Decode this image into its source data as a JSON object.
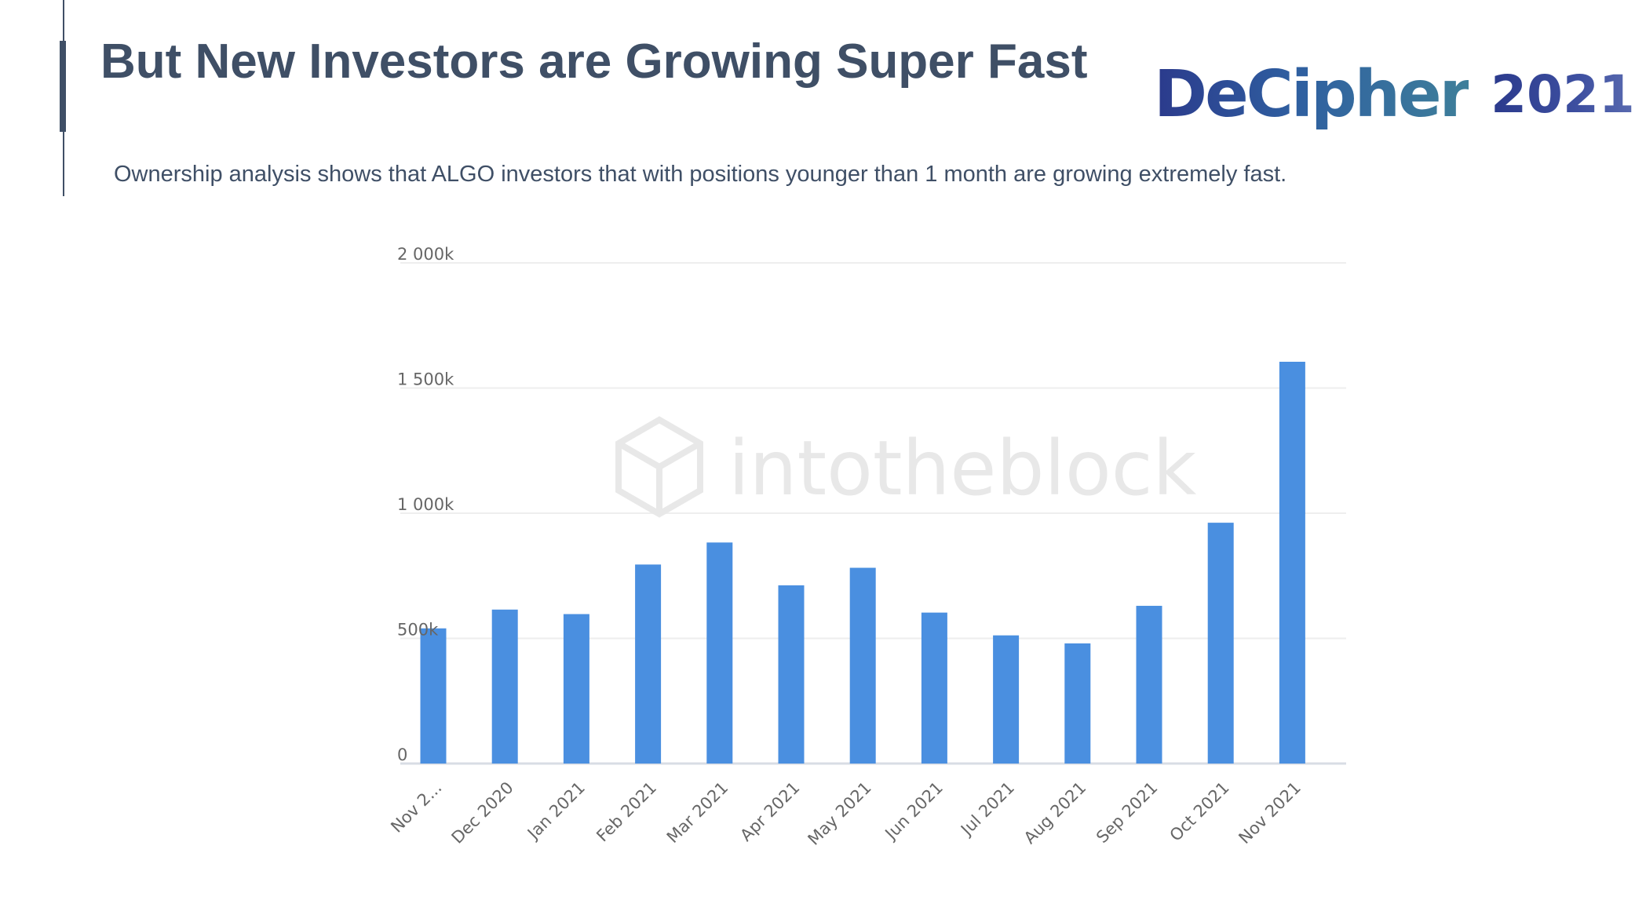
{
  "slide": {
    "title": "But New Investors are Growing Super Fast",
    "subtitle": "Ownership analysis shows that ALGO investors that with positions younger than 1 month are growing extremely fast."
  },
  "logo": {
    "word": "DeCipher",
    "year": "2021"
  },
  "watermark": {
    "text": "intotheblock"
  },
  "chart_data": {
    "type": "bar",
    "categories": [
      "Nov 2...",
      "Dec 2020",
      "Jan 2021",
      "Feb 2021",
      "Mar 2021",
      "Apr 2021",
      "May 2021",
      "Jun 2021",
      "Jul 2021",
      "Aug 2021",
      "Sep 2021",
      "Oct 2021",
      "Nov 2021"
    ],
    "values": [
      540000,
      615000,
      597000,
      795000,
      883000,
      712000,
      782000,
      603000,
      512000,
      480000,
      630000,
      962000,
      1605000
    ],
    "yticks": [
      0,
      500000,
      1000000,
      1500000,
      2000000
    ],
    "ytick_labels": [
      "0",
      "500k",
      "1 000k",
      "1 500k",
      "2 000k"
    ],
    "ylim": [
      0,
      2000000
    ],
    "title": "",
    "xlabel": "",
    "ylabel": "",
    "grid": true,
    "legend": "none",
    "bar_color": "#4a8fe0",
    "grid_color": "#eeeeee"
  }
}
